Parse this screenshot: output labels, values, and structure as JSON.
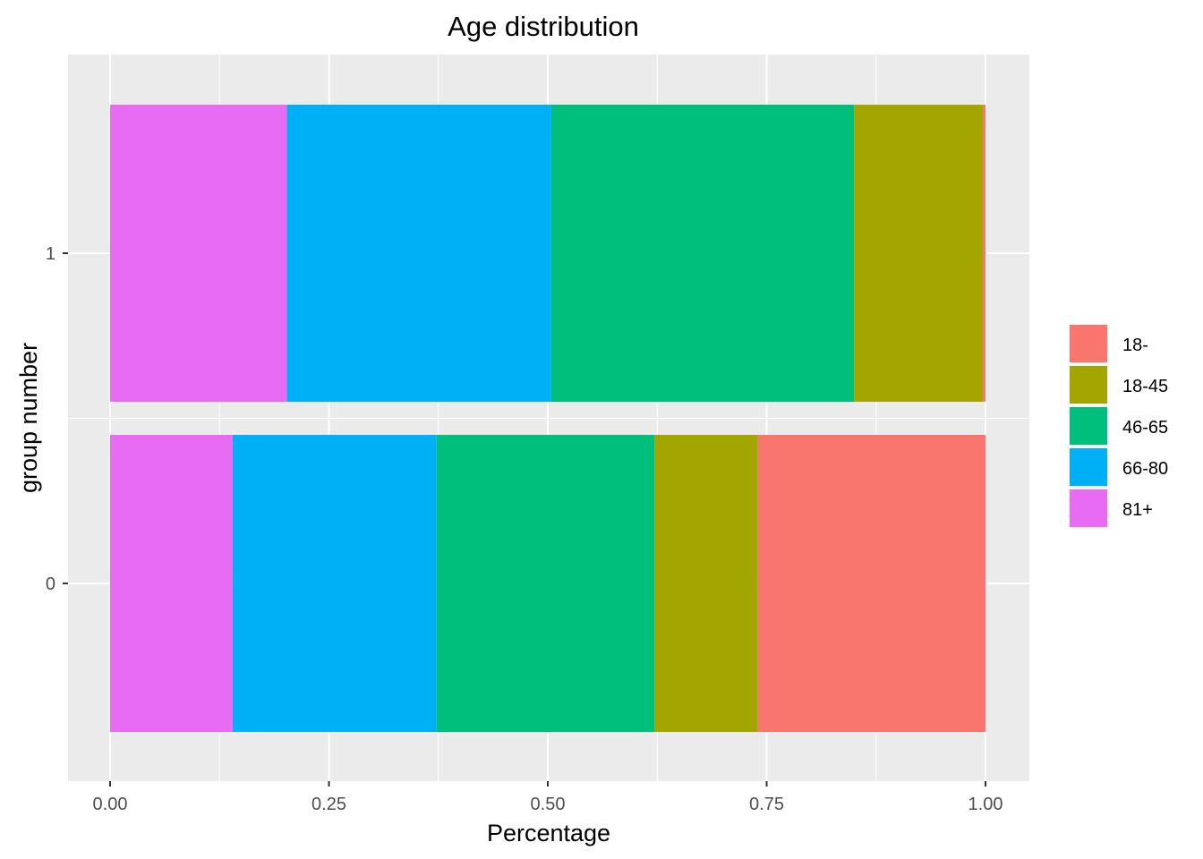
{
  "chart_data": {
    "type": "bar",
    "orientation": "horizontal",
    "stacked": true,
    "title": "Age distribution",
    "xlabel": "Percentage",
    "ylabel": "group number",
    "xlim": [
      0,
      1
    ],
    "x_ticks": [
      "0.00",
      "0.25",
      "0.50",
      "0.75",
      "1.00"
    ],
    "x_tick_values": [
      0,
      0.25,
      0.5,
      0.75,
      1.0
    ],
    "categories": [
      "0",
      "1"
    ],
    "grid": true,
    "legend_position": "right",
    "stack_order": [
      "81+",
      "66-80",
      "46-65",
      "18-45",
      "18-"
    ],
    "series": [
      {
        "name": "18-",
        "color": "#F8766D",
        "values": [
          0.26,
          0.003
        ]
      },
      {
        "name": "18-45",
        "color": "#A3A500",
        "values": [
          0.118,
          0.147
        ]
      },
      {
        "name": "46-65",
        "color": "#00BF7D",
        "values": [
          0.249,
          0.346
        ]
      },
      {
        "name": "66-80",
        "color": "#00B0F6",
        "values": [
          0.233,
          0.302
        ]
      },
      {
        "name": "81+",
        "color": "#E76BF3",
        "values": [
          0.14,
          0.202
        ]
      }
    ]
  }
}
